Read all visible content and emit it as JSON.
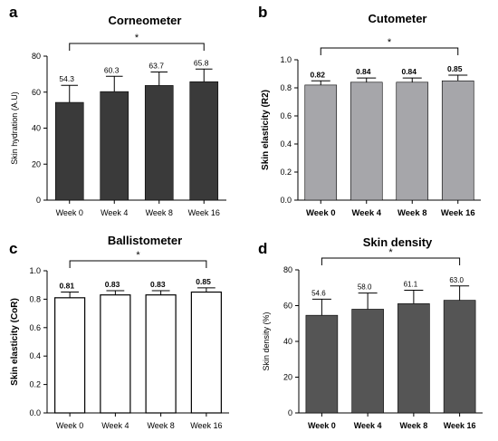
{
  "chart_data": [
    {
      "panel": "a",
      "type": "bar",
      "title": "Corneometer",
      "ylabel": "Skin hydration (A.U)",
      "categories": [
        "Week 0",
        "Week 4",
        "Week 8",
        "Week 16"
      ],
      "values": [
        54.3,
        60.3,
        63.7,
        65.8
      ],
      "value_labels": [
        "54.3",
        "60.3",
        "63.7",
        "65.8"
      ],
      "errors": [
        9.5,
        8.5,
        7.5,
        7.0
      ],
      "ylim": [
        0,
        80
      ],
      "yticks": [
        "0",
        "20",
        "40",
        "60",
        "80"
      ],
      "significance": "*",
      "significance_between": [
        "Week 0",
        "Week 16"
      ],
      "bar_color": "#3a3a3a",
      "bar_fill": true
    },
    {
      "panel": "b",
      "type": "bar",
      "title": "Cutometer",
      "ylabel": "Skin elasticity (R2)",
      "categories": [
        "Week 0",
        "Week 4",
        "Week 8",
        "Week 16"
      ],
      "values": [
        0.82,
        0.84,
        0.84,
        0.85
      ],
      "value_labels": [
        "0.82",
        "0.84",
        "0.84",
        "0.85"
      ],
      "errors": [
        0.03,
        0.03,
        0.03,
        0.04
      ],
      "ylim": [
        0,
        1.0
      ],
      "yticks": [
        "0.0",
        "0.2",
        "0.4",
        "0.6",
        "0.8",
        "1.0"
      ],
      "significance": "*",
      "significance_between": [
        "Week 0",
        "Week 16"
      ],
      "bar_color": "#a6a6aa",
      "bar_fill": true
    },
    {
      "panel": "c",
      "type": "bar",
      "title": "Ballistometer",
      "ylabel": "Skin elasticity (CoR)",
      "categories": [
        "Week 0",
        "Week 4",
        "Week 8",
        "Week 16"
      ],
      "values": [
        0.81,
        0.83,
        0.83,
        0.85
      ],
      "value_labels": [
        "0.81",
        "0.83",
        "0.83",
        "0.85"
      ],
      "errors": [
        0.04,
        0.03,
        0.03,
        0.03
      ],
      "ylim": [
        0,
        1.0
      ],
      "yticks": [
        "0.0",
        "0.2",
        "0.4",
        "0.6",
        "0.8",
        "1.0"
      ],
      "significance": "*",
      "significance_between": [
        "Week 0",
        "Week 16"
      ],
      "bar_color": "#ffffff",
      "bar_fill": false
    },
    {
      "panel": "d",
      "type": "bar",
      "title": "Skin density",
      "ylabel": "Skin density (%)",
      "categories": [
        "Week 0",
        "Week 4",
        "Week 8",
        "Week 16"
      ],
      "values": [
        54.6,
        58.0,
        61.1,
        63.0
      ],
      "value_labels": [
        "54.6",
        "58.0",
        "61.1",
        "63.0"
      ],
      "errors": [
        9.0,
        9.0,
        7.5,
        8.0
      ],
      "ylim": [
        0,
        80
      ],
      "yticks": [
        "0",
        "20",
        "40",
        "60",
        "80"
      ],
      "significance": "*",
      "significance_between": [
        "Week 0",
        "Week 16"
      ],
      "bar_color": "#555555",
      "bar_fill": true
    }
  ]
}
